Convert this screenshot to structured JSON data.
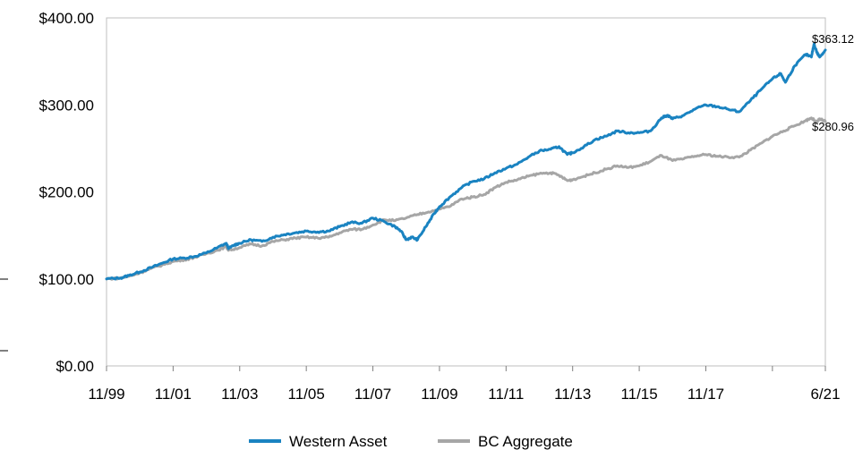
{
  "chart_data": {
    "type": "line",
    "title": "",
    "xlabel": "",
    "ylabel": "",
    "ylim": [
      0,
      400
    ],
    "y_ticks": [
      {
        "value": 0,
        "label": "$0.00"
      },
      {
        "value": 100,
        "label": "$100.00"
      },
      {
        "value": 200,
        "label": "$200.00"
      },
      {
        "value": 300,
        "label": "$300.00"
      },
      {
        "value": 400,
        "label": "$400.00"
      }
    ],
    "xlim": [
      1999.83,
      2021.42
    ],
    "x_ticks": [
      {
        "value": 1999.83,
        "label": "11/99"
      },
      {
        "value": 2001.83,
        "label": "11/01"
      },
      {
        "value": 2003.83,
        "label": "11/03"
      },
      {
        "value": 2005.83,
        "label": "11/05"
      },
      {
        "value": 2007.83,
        "label": "11/07"
      },
      {
        "value": 2009.83,
        "label": "11/09"
      },
      {
        "value": 2011.83,
        "label": "11/11"
      },
      {
        "value": 2013.83,
        "label": "11/13"
      },
      {
        "value": 2015.83,
        "label": "11/15"
      },
      {
        "value": 2017.83,
        "label": "11/17"
      },
      {
        "value": 2019.83,
        "label": ""
      },
      {
        "value": 2021.42,
        "label": "6/21"
      }
    ],
    "grid": false,
    "legend_position": "bottom-center",
    "series": [
      {
        "name": "Western Asset",
        "color": "#1a83c1",
        "end_label": "$363.12",
        "points": [
          [
            1999.83,
            100
          ],
          [
            2000.25,
            101
          ],
          [
            2000.5,
            104
          ],
          [
            2000.83,
            108
          ],
          [
            2001.17,
            113
          ],
          [
            2001.5,
            118
          ],
          [
            2001.83,
            123
          ],
          [
            2002.17,
            124
          ],
          [
            2002.5,
            126
          ],
          [
            2002.83,
            130
          ],
          [
            2003.17,
            136
          ],
          [
            2003.42,
            141
          ],
          [
            2003.5,
            135
          ],
          [
            2003.67,
            139
          ],
          [
            2003.83,
            141
          ],
          [
            2004.17,
            145
          ],
          [
            2004.5,
            143
          ],
          [
            2004.83,
            148
          ],
          [
            2005.17,
            151
          ],
          [
            2005.5,
            153
          ],
          [
            2005.83,
            155
          ],
          [
            2006.17,
            154
          ],
          [
            2006.5,
            155
          ],
          [
            2006.83,
            160
          ],
          [
            2007.17,
            165
          ],
          [
            2007.5,
            164
          ],
          [
            2007.83,
            170
          ],
          [
            2008.17,
            166
          ],
          [
            2008.5,
            160
          ],
          [
            2008.67,
            155
          ],
          [
            2008.83,
            145
          ],
          [
            2009.0,
            148
          ],
          [
            2009.17,
            145
          ],
          [
            2009.42,
            160
          ],
          [
            2009.67,
            175
          ],
          [
            2009.83,
            183
          ],
          [
            2010.17,
            195
          ],
          [
            2010.5,
            205
          ],
          [
            2010.83,
            212
          ],
          [
            2011.17,
            215
          ],
          [
            2011.5,
            222
          ],
          [
            2011.83,
            227
          ],
          [
            2012.17,
            232
          ],
          [
            2012.5,
            240
          ],
          [
            2012.83,
            247
          ],
          [
            2013.17,
            249
          ],
          [
            2013.42,
            252
          ],
          [
            2013.67,
            243
          ],
          [
            2013.83,
            245
          ],
          [
            2014.17,
            252
          ],
          [
            2014.5,
            260
          ],
          [
            2014.83,
            264
          ],
          [
            2015.17,
            270
          ],
          [
            2015.5,
            268
          ],
          [
            2015.83,
            268
          ],
          [
            2016.17,
            270
          ],
          [
            2016.5,
            285
          ],
          [
            2016.67,
            288
          ],
          [
            2016.83,
            284
          ],
          [
            2017.17,
            288
          ],
          [
            2017.5,
            295
          ],
          [
            2017.83,
            300
          ],
          [
            2018.17,
            298
          ],
          [
            2018.5,
            295
          ],
          [
            2018.83,
            292
          ],
          [
            2019.17,
            305
          ],
          [
            2019.5,
            318
          ],
          [
            2019.83,
            330
          ],
          [
            2020.08,
            336
          ],
          [
            2020.22,
            326
          ],
          [
            2020.5,
            345
          ],
          [
            2020.83,
            358
          ],
          [
            2021.0,
            355
          ],
          [
            2021.08,
            370
          ],
          [
            2021.17,
            360
          ],
          [
            2021.25,
            355
          ],
          [
            2021.42,
            363.12
          ]
        ]
      },
      {
        "name": "BC Aggregate",
        "color": "#a6a6a6",
        "end_label": "$280.96",
        "points": [
          [
            1999.83,
            100
          ],
          [
            2000.25,
            101
          ],
          [
            2000.5,
            103
          ],
          [
            2000.83,
            107
          ],
          [
            2001.17,
            112
          ],
          [
            2001.5,
            116
          ],
          [
            2001.83,
            120
          ],
          [
            2002.17,
            122
          ],
          [
            2002.5,
            125
          ],
          [
            2002.83,
            129
          ],
          [
            2003.17,
            133
          ],
          [
            2003.42,
            137
          ],
          [
            2003.5,
            133
          ],
          [
            2003.83,
            136
          ],
          [
            2004.17,
            140
          ],
          [
            2004.5,
            138
          ],
          [
            2004.83,
            143
          ],
          [
            2005.17,
            145
          ],
          [
            2005.5,
            147
          ],
          [
            2005.83,
            148
          ],
          [
            2006.17,
            147
          ],
          [
            2006.5,
            148
          ],
          [
            2006.83,
            153
          ],
          [
            2007.17,
            157
          ],
          [
            2007.5,
            157
          ],
          [
            2007.83,
            162
          ],
          [
            2008.17,
            168
          ],
          [
            2008.5,
            167
          ],
          [
            2008.83,
            170
          ],
          [
            2009.17,
            174
          ],
          [
            2009.5,
            177
          ],
          [
            2009.83,
            180
          ],
          [
            2010.17,
            184
          ],
          [
            2010.5,
            192
          ],
          [
            2010.83,
            194
          ],
          [
            2011.17,
            197
          ],
          [
            2011.5,
            205
          ],
          [
            2011.83,
            211
          ],
          [
            2012.17,
            214
          ],
          [
            2012.5,
            218
          ],
          [
            2012.83,
            221
          ],
          [
            2013.17,
            222
          ],
          [
            2013.42,
            219
          ],
          [
            2013.67,
            213
          ],
          [
            2013.83,
            214
          ],
          [
            2014.17,
            218
          ],
          [
            2014.5,
            222
          ],
          [
            2014.83,
            226
          ],
          [
            2015.17,
            230
          ],
          [
            2015.5,
            228
          ],
          [
            2015.83,
            230
          ],
          [
            2016.17,
            235
          ],
          [
            2016.5,
            242
          ],
          [
            2016.83,
            236
          ],
          [
            2017.17,
            238
          ],
          [
            2017.5,
            241
          ],
          [
            2017.83,
            243
          ],
          [
            2018.17,
            241
          ],
          [
            2018.5,
            240
          ],
          [
            2018.83,
            240
          ],
          [
            2019.17,
            248
          ],
          [
            2019.5,
            256
          ],
          [
            2019.83,
            264
          ],
          [
            2020.17,
            270
          ],
          [
            2020.5,
            276
          ],
          [
            2020.83,
            282
          ],
          [
            2021.0,
            285
          ],
          [
            2021.17,
            280
          ],
          [
            2021.25,
            284
          ],
          [
            2021.42,
            280.96
          ]
        ]
      }
    ]
  }
}
